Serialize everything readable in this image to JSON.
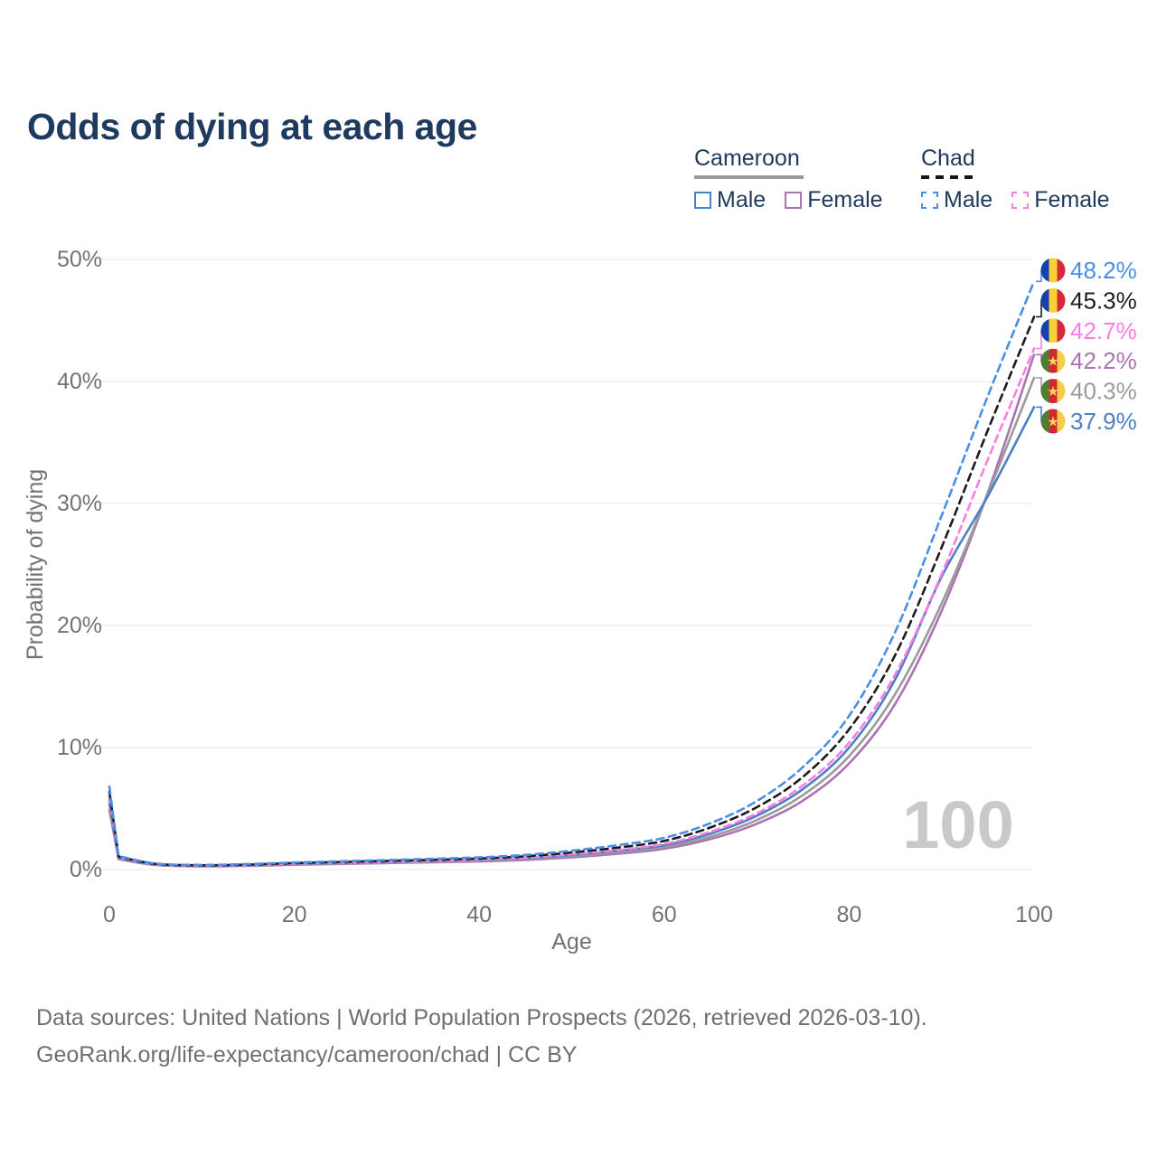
{
  "title": "Odds of dying at each age",
  "legend": {
    "cameroon": {
      "label": "Cameroon",
      "male_label": "Male",
      "female_label": "Female"
    },
    "chad": {
      "label": "Chad",
      "male_label": "Male",
      "female_label": "Female"
    }
  },
  "colors": {
    "cameroon_male": "#4d7fc4",
    "cameroon_female": "#ab73b4",
    "cameroon_total": "#9b9b9b",
    "chad_male": "#4a8fe3",
    "chad_female": "#fa7ee2",
    "chad_total": "#1c1c1c",
    "title_navy": "#1f3a5f",
    "axis_gray": "#737373",
    "grid_gray": "#ececec",
    "watermark_gray": "#c9c9c9"
  },
  "flag_colors": {
    "chad": [
      "#1543ae",
      "#f8d03c",
      "#d5293c"
    ],
    "cameroon": [
      "#4f7d36",
      "#d02a31",
      "#f6ce4b"
    ],
    "cameroon_star": "#fcd856"
  },
  "watermark": "100",
  "chart_data": {
    "type": "line",
    "title": "Odds of dying at each age",
    "xlabel": "Age",
    "ylabel": "Probability of dying",
    "xlim": [
      0,
      100
    ],
    "ylim": [
      0,
      50
    ],
    "x_tick_labels": [
      "0",
      "20",
      "40",
      "60",
      "80",
      "100"
    ],
    "x_tick_values": [
      0,
      20,
      40,
      60,
      80,
      100
    ],
    "y_tick_labels": [
      "0%",
      "10%",
      "20%",
      "30%",
      "40%",
      "50%"
    ],
    "y_tick_values": [
      0,
      10,
      20,
      30,
      40,
      50
    ],
    "grid": "horizontal",
    "legend_position": "top-right",
    "x": [
      0,
      1,
      5,
      10,
      15,
      20,
      25,
      30,
      35,
      40,
      45,
      50,
      55,
      60,
      65,
      70,
      75,
      80,
      85,
      90,
      95,
      100
    ],
    "series": [
      {
        "id": "cameroon_female",
        "name": "Cameroon Female",
        "country": "Cameroon",
        "sex": "Female",
        "dashed": false,
        "flag": "cameroon",
        "end_label": "42.2%",
        "values": [
          4.9,
          0.85,
          0.37,
          0.26,
          0.3,
          0.39,
          0.46,
          0.53,
          0.6,
          0.67,
          0.79,
          1.0,
          1.3,
          1.7,
          2.5,
          3.75,
          5.65,
          8.7,
          13.6,
          21.2,
          30.9,
          42.2
        ]
      },
      {
        "id": "cameroon_total",
        "name": "Cameroon Total",
        "country": "Cameroon",
        "sex": "Both",
        "dashed": false,
        "flag": "cameroon",
        "end_label": "40.3%",
        "values": [
          5.3,
          0.9,
          0.4,
          0.28,
          0.33,
          0.43,
          0.5,
          0.58,
          0.65,
          0.73,
          0.87,
          1.1,
          1.42,
          1.85,
          2.7,
          4.05,
          6.1,
          9.3,
          14.4,
          21.8,
          30.8,
          40.3
        ]
      },
      {
        "id": "cameroon_male",
        "name": "Cameroon Male",
        "country": "Cameroon",
        "sex": "Male",
        "dashed": false,
        "flag": "cameroon",
        "end_label": "37.9%",
        "values": [
          5.7,
          0.95,
          0.42,
          0.3,
          0.36,
          0.47,
          0.55,
          0.63,
          0.71,
          0.8,
          0.95,
          1.2,
          1.55,
          2.0,
          2.95,
          4.4,
          6.6,
          10.0,
          15.6,
          24.0,
          30.6,
          37.9
        ]
      },
      {
        "id": "chad_female",
        "name": "Chad Female",
        "country": "Chad",
        "sex": "Female",
        "dashed": true,
        "flag": "chad",
        "end_label": "42.7%",
        "values": [
          6.0,
          1.0,
          0.44,
          0.32,
          0.37,
          0.48,
          0.56,
          0.64,
          0.72,
          0.82,
          0.98,
          1.25,
          1.6,
          2.1,
          3.1,
          4.6,
          6.9,
          10.4,
          16.0,
          24.2,
          33.6,
          42.7
        ]
      },
      {
        "id": "chad_total",
        "name": "Chad Total",
        "country": "Chad",
        "sex": "Both",
        "dashed": true,
        "flag": "chad",
        "end_label": "45.3%",
        "values": [
          6.4,
          1.05,
          0.47,
          0.35,
          0.41,
          0.53,
          0.62,
          0.71,
          0.8,
          0.91,
          1.09,
          1.4,
          1.8,
          2.35,
          3.45,
          5.1,
          7.6,
          11.5,
          17.6,
          26.4,
          36.0,
          45.3
        ]
      },
      {
        "id": "chad_male",
        "name": "Chad Male",
        "country": "Chad",
        "sex": "Male",
        "dashed": true,
        "flag": "chad",
        "end_label": "48.2%",
        "values": [
          6.8,
          1.1,
          0.5,
          0.38,
          0.45,
          0.58,
          0.68,
          0.78,
          0.88,
          1.0,
          1.2,
          1.55,
          2.0,
          2.6,
          3.8,
          5.6,
          8.4,
          12.6,
          19.5,
          29.0,
          38.8,
          48.2
        ]
      }
    ]
  },
  "footer": {
    "line1": "Data sources: United Nations | World Population Prospects (2026, retrieved 2026-03-10).",
    "line2": "GeoRank.org/life-expectancy/cameroon/chad | CC BY"
  }
}
